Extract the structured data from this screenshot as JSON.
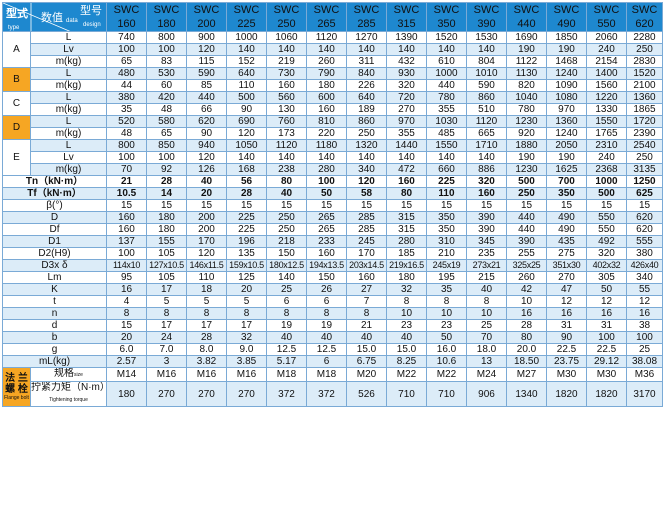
{
  "header": {
    "type_label": "型式",
    "type_en": "type",
    "data_label": "数值",
    "data_en": "data",
    "model_label": "型号",
    "model_en": "design",
    "item_label": "项目",
    "item_en": "item",
    "models": [
      [
        "SWC",
        "160"
      ],
      [
        "SWC",
        "180"
      ],
      [
        "SWC",
        "200"
      ],
      [
        "SWC",
        "225"
      ],
      [
        "SWC",
        "250"
      ],
      [
        "SWC",
        "265"
      ],
      [
        "SWC",
        "285"
      ],
      [
        "SWC",
        "315"
      ],
      [
        "SWC",
        "350"
      ],
      [
        "SWC",
        "390"
      ],
      [
        "SWC",
        "440"
      ],
      [
        "SWC",
        "490"
      ],
      [
        "SWC",
        "550"
      ],
      [
        "SWC",
        "620"
      ]
    ]
  },
  "groups": [
    {
      "label": "A",
      "orange": false,
      "rows": [
        {
          "label": "L",
          "values": [
            "740",
            "800",
            "900",
            "1000",
            "1060",
            "1120",
            "1270",
            "1390",
            "1520",
            "1530",
            "1690",
            "1850",
            "2060",
            "2280"
          ]
        },
        {
          "label": "Lv",
          "values": [
            "100",
            "100",
            "120",
            "140",
            "140",
            "140",
            "140",
            "140",
            "140",
            "140",
            "190",
            "190",
            "240",
            "250"
          ]
        },
        {
          "label": "m(kg)",
          "values": [
            "65",
            "83",
            "115",
            "152",
            "219",
            "260",
            "311",
            "432",
            "610",
            "804",
            "1122",
            "1468",
            "2154",
            "2830"
          ]
        }
      ]
    },
    {
      "label": "B",
      "orange": true,
      "rows": [
        {
          "label": "L",
          "values": [
            "480",
            "530",
            "590",
            "640",
            "730",
            "790",
            "840",
            "930",
            "1000",
            "1010",
            "1130",
            "1240",
            "1400",
            "1520"
          ]
        },
        {
          "label": "m(kg)",
          "values": [
            "44",
            "60",
            "85",
            "110",
            "160",
            "180",
            "226",
            "320",
            "440",
            "590",
            "820",
            "1090",
            "1560",
            "2100"
          ]
        }
      ]
    },
    {
      "label": "C",
      "orange": false,
      "rows": [
        {
          "label": "L",
          "values": [
            "380",
            "420",
            "440",
            "500",
            "560",
            "600",
            "640",
            "720",
            "780",
            "860",
            "1040",
            "1080",
            "1220",
            "1360"
          ]
        },
        {
          "label": "m(kg)",
          "values": [
            "35",
            "48",
            "66",
            "90",
            "130",
            "160",
            "189",
            "270",
            "355",
            "510",
            "780",
            "970",
            "1330",
            "1865"
          ]
        }
      ]
    },
    {
      "label": "D",
      "orange": true,
      "rows": [
        {
          "label": "L",
          "values": [
            "520",
            "580",
            "620",
            "690",
            "760",
            "810",
            "860",
            "970",
            "1030",
            "1120",
            "1230",
            "1360",
            "1550",
            "1720"
          ]
        },
        {
          "label": "m(kg)",
          "values": [
            "48",
            "65",
            "90",
            "120",
            "173",
            "220",
            "250",
            "355",
            "485",
            "665",
            "920",
            "1240",
            "1765",
            "2390"
          ]
        }
      ]
    },
    {
      "label": "E",
      "orange": false,
      "rows": [
        {
          "label": "L",
          "values": [
            "800",
            "850",
            "940",
            "1050",
            "1120",
            "1180",
            "1320",
            "1440",
            "1550",
            "1710",
            "1880",
            "2050",
            "2310",
            "2540"
          ]
        },
        {
          "label": "Lv",
          "values": [
            "100",
            "100",
            "120",
            "140",
            "140",
            "140",
            "140",
            "140",
            "140",
            "140",
            "190",
            "190",
            "240",
            "250"
          ]
        },
        {
          "label": "m(kg)",
          "values": [
            "70",
            "92",
            "126",
            "168",
            "238",
            "280",
            "340",
            "472",
            "660",
            "886",
            "1230",
            "1625",
            "2368",
            "3135"
          ]
        }
      ]
    }
  ],
  "params": [
    {
      "label": "Tn（kN·m）",
      "bold": true,
      "values": [
        "21",
        "28",
        "40",
        "56",
        "80",
        "100",
        "120",
        "160",
        "225",
        "320",
        "500",
        "700",
        "1000",
        "1250"
      ]
    },
    {
      "label": "Tf（kN·m）",
      "bold": true,
      "values": [
        "10.5",
        "14",
        "20",
        "28",
        "40",
        "50",
        "58",
        "80",
        "110",
        "160",
        "250",
        "350",
        "500",
        "625"
      ]
    },
    {
      "label": "β(°)",
      "values": [
        "15",
        "15",
        "15",
        "15",
        "15",
        "15",
        "15",
        "15",
        "15",
        "15",
        "15",
        "15",
        "15",
        "15"
      ]
    },
    {
      "label": "D",
      "values": [
        "160",
        "180",
        "200",
        "225",
        "250",
        "265",
        "285",
        "315",
        "350",
        "390",
        "440",
        "490",
        "550",
        "620"
      ]
    },
    {
      "label": "Df",
      "values": [
        "160",
        "180",
        "200",
        "225",
        "250",
        "265",
        "285",
        "315",
        "350",
        "390",
        "440",
        "490",
        "550",
        "620"
      ]
    },
    {
      "label": "D1",
      "values": [
        "137",
        "155",
        "170",
        "196",
        "218",
        "233",
        "245",
        "280",
        "310",
        "345",
        "390",
        "435",
        "492",
        "555"
      ]
    },
    {
      "label": "D2(H9)",
      "values": [
        "100",
        "105",
        "120",
        "135",
        "150",
        "160",
        "170",
        "185",
        "210",
        "235",
        "255",
        "275",
        "320",
        "380"
      ]
    },
    {
      "label": "D3x δ",
      "small": true,
      "values": [
        "114x10",
        "127x10.5",
        "146x11.5",
        "159x10.5",
        "180x12.5",
        "194x13.5",
        "203x14.5",
        "219x16.5",
        "245x19",
        "273x21",
        "325x25",
        "351x30",
        "402x32",
        "426x40"
      ]
    },
    {
      "label": "Lm",
      "values": [
        "95",
        "105",
        "110",
        "125",
        "140",
        "150",
        "160",
        "180",
        "195",
        "215",
        "260",
        "270",
        "305",
        "340"
      ]
    },
    {
      "label": "K",
      "values": [
        "16",
        "17",
        "18",
        "20",
        "25",
        "26",
        "27",
        "32",
        "35",
        "40",
        "42",
        "47",
        "50",
        "55"
      ]
    },
    {
      "label": "t",
      "values": [
        "4",
        "5",
        "5",
        "5",
        "6",
        "6",
        "7",
        "8",
        "8",
        "8",
        "10",
        "12",
        "12",
        "12"
      ]
    },
    {
      "label": "n",
      "values": [
        "8",
        "8",
        "8",
        "8",
        "8",
        "8",
        "8",
        "10",
        "10",
        "10",
        "16",
        "16",
        "16",
        "16"
      ]
    },
    {
      "label": "d",
      "values": [
        "15",
        "17",
        "17",
        "17",
        "19",
        "19",
        "21",
        "23",
        "23",
        "25",
        "28",
        "31",
        "31",
        "38"
      ]
    },
    {
      "label": "b",
      "values": [
        "20",
        "24",
        "28",
        "32",
        "40",
        "40",
        "40",
        "40",
        "50",
        "70",
        "80",
        "90",
        "100",
        "100"
      ]
    },
    {
      "label": "g",
      "values": [
        "6.0",
        "7.0",
        "8.0",
        "9.0",
        "12.5",
        "12.5",
        "15.0",
        "15.0",
        "16.0",
        "18.0",
        "20.0",
        "22.5",
        "22.5",
        "25"
      ]
    },
    {
      "label": "mL(kg)",
      "values": [
        "2.57",
        "3",
        "3.82",
        "3.85",
        "5.17",
        "6",
        "6.75",
        "8.25",
        "10.6",
        "13",
        "18.50",
        "23.75",
        "29.12",
        "38.08"
      ]
    }
  ],
  "flange": {
    "label_line1": "法 兰",
    "label_line2": "螺 栓",
    "label_en": "Flange bolt",
    "size_label": "规格",
    "size_en": "size",
    "torque_label": "拧紧力矩（N·m）",
    "torque_en": "Tightening torque",
    "sizes": [
      "M14",
      "M16",
      "M16",
      "M16",
      "M18",
      "M18",
      "M20",
      "M22",
      "M22",
      "M24",
      "M27",
      "M30",
      "M30",
      "M36"
    ],
    "torques": [
      "180",
      "270",
      "270",
      "270",
      "372",
      "372",
      "526",
      "710",
      "710",
      "906",
      "1340",
      "1820",
      "1820",
      "3170"
    ]
  }
}
